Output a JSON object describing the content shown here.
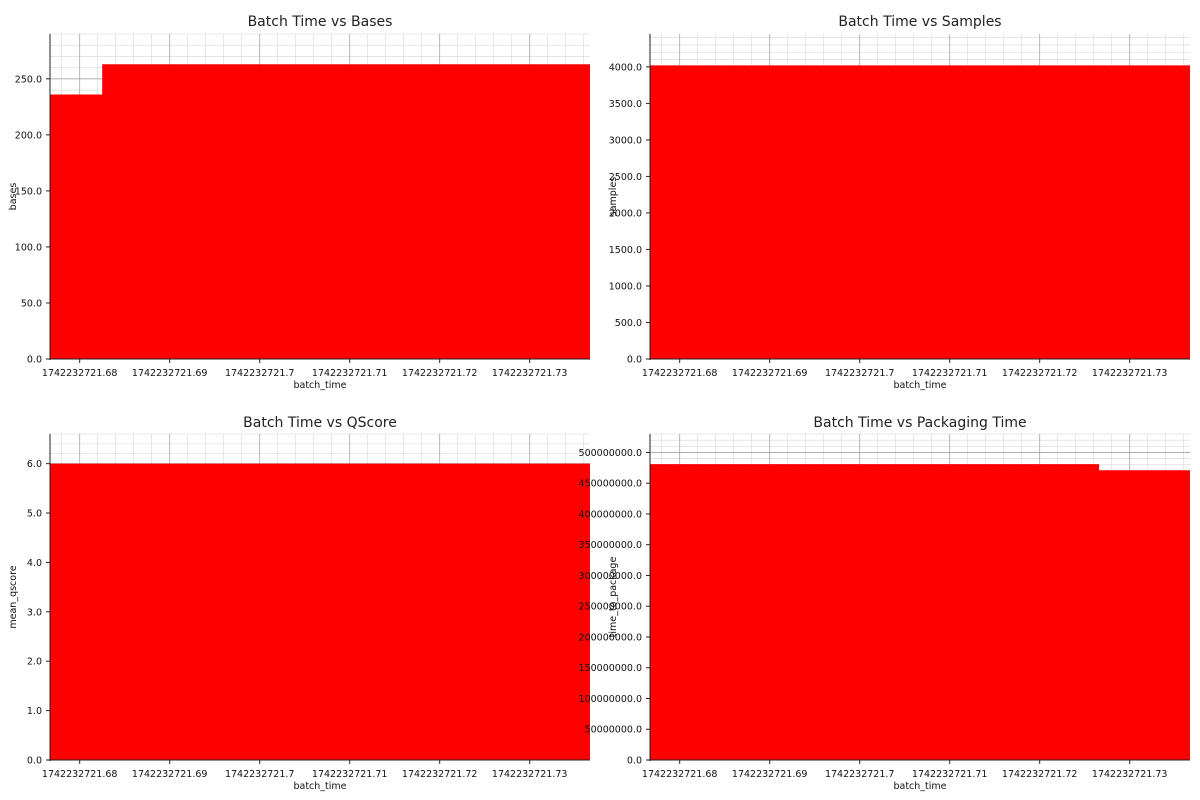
{
  "chart_data": [
    {
      "type": "area",
      "title": "Batch Time vs Bases",
      "xlabel": "batch_time",
      "ylabel": "bases",
      "xlim": [
        1742232721.6767,
        1742232721.7367
      ],
      "ylim": [
        0,
        290
      ],
      "x_ticks": [
        "1742232721.68",
        "1742232721.69",
        "1742232721.7",
        "1742232721.71",
        "1742232721.72",
        "1742232721.73"
      ],
      "x_tick_values": [
        1742232721.68,
        1742232721.69,
        1742232721.7,
        1742232721.71,
        1742232721.72,
        1742232721.73
      ],
      "y_ticks": [
        "0.0",
        "50.0",
        "100.0",
        "150.0",
        "200.0",
        "250.0"
      ],
      "y_tick_values": [
        0,
        50,
        100,
        150,
        200,
        250
      ],
      "points": [
        {
          "x": 1742232721.6767,
          "y": 236
        },
        {
          "x": 1742232721.6825,
          "y": 236
        },
        {
          "x": 1742232721.6825,
          "y": 263
        },
        {
          "x": 1742232721.7367,
          "y": 263
        }
      ],
      "grid": true,
      "color": "#ff0000"
    },
    {
      "type": "area",
      "title": "Batch Time vs Samples",
      "xlabel": "batch_time",
      "ylabel": "samples",
      "xlim": [
        1742232721.6767,
        1742232721.7367
      ],
      "ylim": [
        0,
        4450
      ],
      "x_ticks": [
        "1742232721.68",
        "1742232721.69",
        "1742232721.7",
        "1742232721.71",
        "1742232721.72",
        "1742232721.73"
      ],
      "x_tick_values": [
        1742232721.68,
        1742232721.69,
        1742232721.7,
        1742232721.71,
        1742232721.72,
        1742232721.73
      ],
      "y_ticks": [
        "0.0",
        "500.0",
        "1000.0",
        "1500.0",
        "2000.0",
        "2500.0",
        "3000.0",
        "3500.0",
        "4000.0"
      ],
      "y_tick_values": [
        0,
        500,
        1000,
        1500,
        2000,
        2500,
        3000,
        3500,
        4000
      ],
      "points": [
        {
          "x": 1742232721.6767,
          "y": 4020
        },
        {
          "x": 1742232721.7367,
          "y": 4020
        }
      ],
      "grid": true,
      "color": "#ff0000"
    },
    {
      "type": "area",
      "title": "Batch Time vs QScore",
      "xlabel": "batch_time",
      "ylabel": "mean_qscore",
      "xlim": [
        1742232721.6767,
        1742232721.7367
      ],
      "ylim": [
        0,
        6.6
      ],
      "x_ticks": [
        "1742232721.68",
        "1742232721.69",
        "1742232721.7",
        "1742232721.71",
        "1742232721.72",
        "1742232721.73"
      ],
      "x_tick_values": [
        1742232721.68,
        1742232721.69,
        1742232721.7,
        1742232721.71,
        1742232721.72,
        1742232721.73
      ],
      "y_ticks": [
        "0.0",
        "1.0",
        "2.0",
        "3.0",
        "4.0",
        "5.0",
        "6.0"
      ],
      "y_tick_values": [
        0,
        1,
        2,
        3,
        4,
        5,
        6
      ],
      "points": [
        {
          "x": 1742232721.6767,
          "y": 6.0
        },
        {
          "x": 1742232721.7367,
          "y": 6.0
        }
      ],
      "grid": true,
      "color": "#ff0000"
    },
    {
      "type": "area",
      "title": "Batch Time vs Packaging Time",
      "xlabel": "batch_time",
      "ylabel": "time_to_package",
      "xlim": [
        1742232721.6767,
        1742232721.7367
      ],
      "ylim": [
        0,
        530000000
      ],
      "x_ticks": [
        "1742232721.68",
        "1742232721.69",
        "1742232721.7",
        "1742232721.71",
        "1742232721.72",
        "1742232721.73"
      ],
      "x_tick_values": [
        1742232721.68,
        1742232721.69,
        1742232721.7,
        1742232721.71,
        1742232721.72,
        1742232721.73
      ],
      "y_ticks": [
        "0.0",
        "50000000.0",
        "100000000.0",
        "150000000.0",
        "200000000.0",
        "250000000.0",
        "300000000.0",
        "350000000.0",
        "400000000.0",
        "450000000.0",
        "500000000.0"
      ],
      "y_tick_values": [
        0,
        50000000,
        100000000,
        150000000,
        200000000,
        250000000,
        300000000,
        350000000,
        400000000,
        450000000,
        500000000
      ],
      "points": [
        {
          "x": 1742232721.6767,
          "y": 481000000
        },
        {
          "x": 1742232721.7266,
          "y": 481000000
        },
        {
          "x": 1742232721.7266,
          "y": 471000000
        },
        {
          "x": 1742232721.7367,
          "y": 471000000
        }
      ],
      "grid": true,
      "color": "#ff0000"
    }
  ]
}
